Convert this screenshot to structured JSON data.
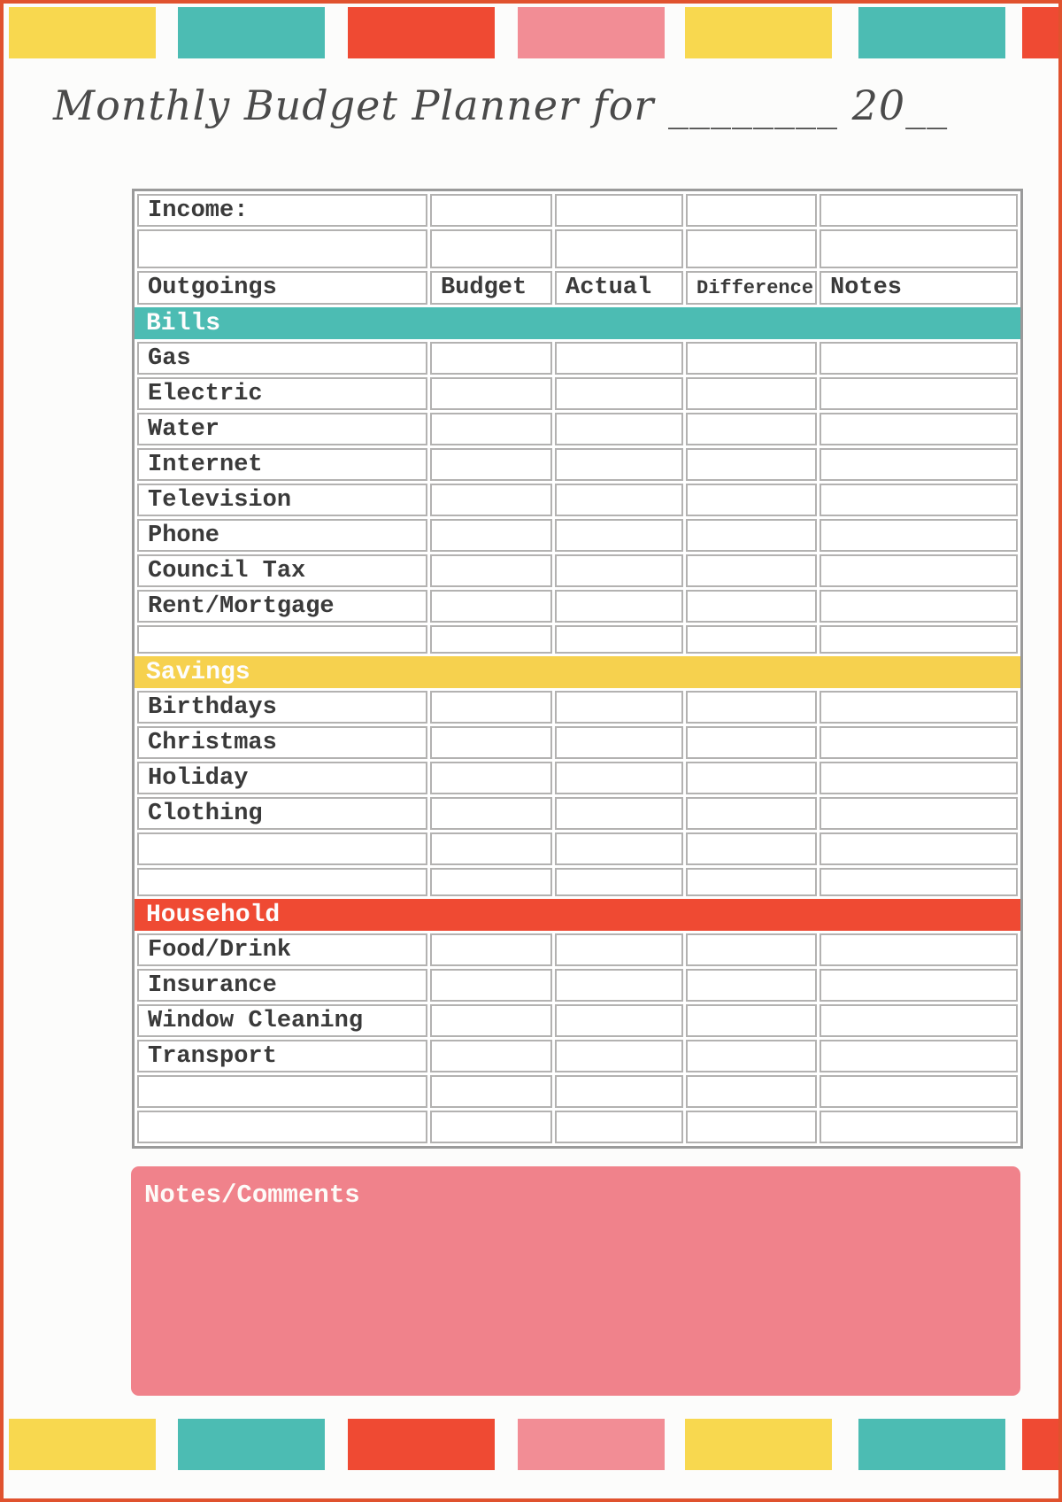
{
  "page": {
    "title": "Monthly Budget Planner for ________ 20__"
  },
  "palette": {
    "yellow": "#f8d84f",
    "teal": "#4cbcb3",
    "red": "#ef4a33",
    "pink": "#f28d95",
    "notes_pink": "#f0828b",
    "savings_yellow": "#f6d14e",
    "page_border": "#e0522e",
    "grid_outer": "#9a9a9a",
    "grid_cell": "#b3b2b1",
    "text": "#3a3a3a"
  },
  "decor": {
    "top_blocks": [
      "yellow",
      "teal",
      "red",
      "pink",
      "yellow",
      "teal",
      "red"
    ],
    "bottom_blocks": [
      "yellow",
      "teal",
      "red",
      "pink",
      "yellow",
      "teal",
      "red"
    ]
  },
  "table": {
    "income_label": "Income:",
    "columns": [
      "Outgoings",
      "Budget",
      "Actual",
      "Difference",
      "Notes"
    ],
    "sections": [
      {
        "name": "Bills",
        "color": "#4cbcb3",
        "rows": [
          "Gas",
          "Electric",
          "Water",
          "Internet",
          "Television",
          "Phone",
          "Council Tax",
          "Rent/Mortgage",
          ""
        ]
      },
      {
        "name": "Savings",
        "color": "#f6d14e",
        "rows": [
          "Birthdays",
          "Christmas",
          "Holiday",
          "Clothing",
          "",
          ""
        ]
      },
      {
        "name": "Household",
        "color": "#ef4a33",
        "rows": [
          "Food/Drink",
          "Insurance",
          "Window Cleaning",
          "Transport",
          "",
          ""
        ]
      }
    ]
  },
  "notes": {
    "label": "Notes/Comments"
  }
}
